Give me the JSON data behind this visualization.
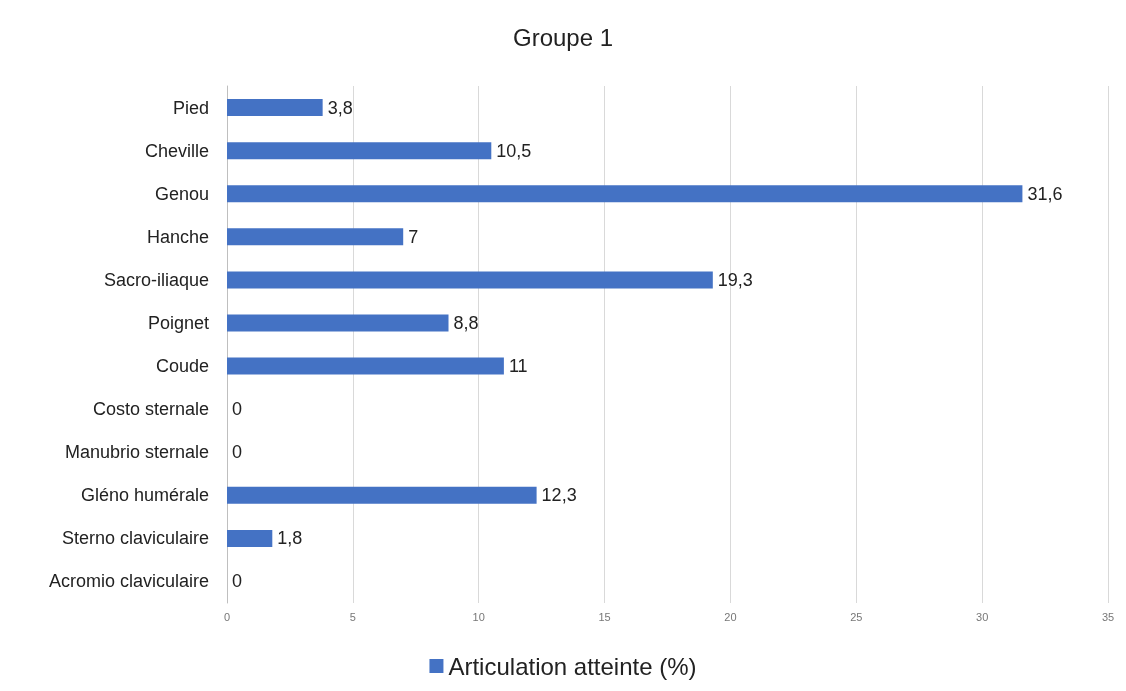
{
  "chart_data": {
    "type": "bar",
    "orientation": "horizontal",
    "title": "Groupe 1",
    "categories": [
      "Pied",
      "Cheville",
      "Genou",
      "Hanche",
      "Sacro-iliaque",
      "Poignet",
      "Coude",
      "Costo sternale",
      "Manubrio sternale",
      "Gléno humérale",
      "Sterno claviculaire",
      "Acromio claviculaire"
    ],
    "series": [
      {
        "name": "Articulation atteinte (%)",
        "color": "#4472c4",
        "values": [
          3.8,
          10.5,
          31.6,
          7,
          19.3,
          8.8,
          11,
          0,
          0,
          12.3,
          1.8,
          0
        ],
        "value_labels": [
          "3,8",
          "10,5",
          "31,6",
          "7",
          "19,3",
          "8,8",
          "11",
          "0",
          "0",
          "12,3",
          "1,8",
          "0"
        ]
      }
    ],
    "xlim": [
      0,
      35
    ],
    "xticks": [
      0,
      5,
      10,
      15,
      20,
      25,
      30,
      35
    ],
    "grid": "x",
    "legend": "bottom"
  }
}
